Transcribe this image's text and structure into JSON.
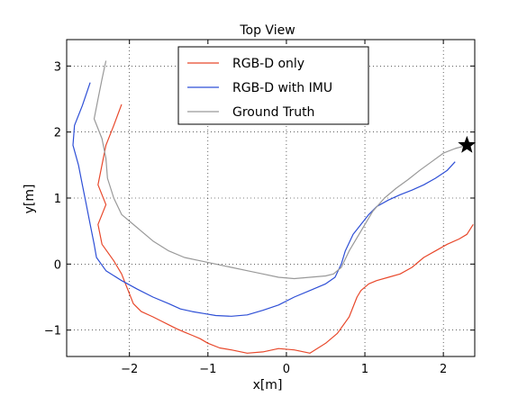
{
  "chart_data": {
    "type": "line",
    "title": "Top View",
    "xlabel": "x[m]",
    "ylabel": "y[m]",
    "xlim": [
      -2.8,
      2.4
    ],
    "ylim": [
      -1.4,
      3.4
    ],
    "xticks": [
      -2,
      -1,
      0,
      1,
      2
    ],
    "yticks": [
      -1,
      0,
      1,
      2,
      3
    ],
    "xtick_labels": [
      "−2",
      "−1",
      "0",
      "1",
      "2"
    ],
    "ytick_labels": [
      "−1",
      "0",
      "1",
      "2",
      "3"
    ],
    "grid": true,
    "grid_style": "dotted",
    "legend_position": "upper-center",
    "series": [
      {
        "name": "RGB-D only",
        "color": "#e8482b",
        "x": [
          -2.1,
          -2.2,
          -2.3,
          -2.35,
          -2.4,
          -2.3,
          -2.4,
          -2.35,
          -2.2,
          -2.1,
          -2.05,
          -2.0,
          -1.95,
          -1.85,
          -1.7,
          -1.6,
          -1.5,
          -1.4,
          -1.3,
          -1.2,
          -1.1,
          -1.0,
          -0.85,
          -0.7,
          -0.5,
          -0.3,
          -0.1,
          0.1,
          0.3,
          0.5,
          0.65,
          0.8,
          0.9,
          0.95,
          1.05,
          1.15,
          1.3,
          1.45,
          1.6,
          1.75,
          1.9,
          2.05,
          2.2,
          2.3,
          2.38
        ],
        "y": [
          2.42,
          2.1,
          1.8,
          1.5,
          1.2,
          0.9,
          0.6,
          0.3,
          0.05,
          -0.15,
          -0.3,
          -0.45,
          -0.6,
          -0.72,
          -0.8,
          -0.86,
          -0.92,
          -0.98,
          -1.03,
          -1.08,
          -1.13,
          -1.2,
          -1.27,
          -1.3,
          -1.35,
          -1.33,
          -1.28,
          -1.3,
          -1.35,
          -1.2,
          -1.05,
          -0.8,
          -0.5,
          -0.4,
          -0.3,
          -0.25,
          -0.2,
          -0.15,
          -0.05,
          0.1,
          0.2,
          0.3,
          0.38,
          0.45,
          0.6
        ]
      },
      {
        "name": "RGB-D with IMU",
        "color": "#2e4fd6",
        "x": [
          -2.5,
          -2.6,
          -2.7,
          -2.72,
          -2.65,
          -2.6,
          -2.55,
          -2.5,
          -2.45,
          -2.42,
          -2.3,
          -2.1,
          -1.9,
          -1.7,
          -1.5,
          -1.35,
          -1.2,
          -1.05,
          -0.9,
          -0.7,
          -0.5,
          -0.3,
          -0.1,
          0.1,
          0.3,
          0.5,
          0.62,
          0.7,
          0.75,
          0.85,
          0.95,
          1.05,
          1.15,
          1.3,
          1.45,
          1.6,
          1.75,
          1.9,
          2.05,
          2.15
        ],
        "y": [
          2.75,
          2.4,
          2.1,
          1.8,
          1.5,
          1.2,
          0.9,
          0.6,
          0.3,
          0.1,
          -0.1,
          -0.25,
          -0.38,
          -0.5,
          -0.6,
          -0.68,
          -0.72,
          -0.75,
          -0.78,
          -0.79,
          -0.77,
          -0.7,
          -0.62,
          -0.5,
          -0.4,
          -0.3,
          -0.2,
          0.0,
          0.2,
          0.45,
          0.6,
          0.75,
          0.87,
          0.97,
          1.05,
          1.12,
          1.2,
          1.3,
          1.42,
          1.55
        ]
      },
      {
        "name": "Ground Truth",
        "color": "#999999",
        "x": [
          -2.3,
          -2.35,
          -2.4,
          -2.45,
          -2.35,
          -2.3,
          -2.28,
          -2.2,
          -2.1,
          -1.9,
          -1.7,
          -1.5,
          -1.3,
          -1.1,
          -0.9,
          -0.7,
          -0.5,
          -0.3,
          -0.1,
          0.1,
          0.3,
          0.5,
          0.6,
          0.7,
          0.8,
          0.95,
          1.1,
          1.25,
          1.4,
          1.55,
          1.7,
          1.85,
          2.0,
          2.15,
          2.3
        ],
        "y": [
          3.08,
          2.8,
          2.5,
          2.2,
          1.9,
          1.6,
          1.3,
          1.0,
          0.75,
          0.55,
          0.35,
          0.2,
          0.1,
          0.05,
          0.0,
          -0.05,
          -0.1,
          -0.15,
          -0.2,
          -0.22,
          -0.2,
          -0.18,
          -0.15,
          -0.05,
          0.2,
          0.5,
          0.8,
          1.0,
          1.15,
          1.28,
          1.42,
          1.55,
          1.68,
          1.75,
          1.8
        ]
      }
    ],
    "markers": [
      {
        "type": "star",
        "x": 2.3,
        "y": 1.8,
        "color": "#000000"
      }
    ]
  }
}
